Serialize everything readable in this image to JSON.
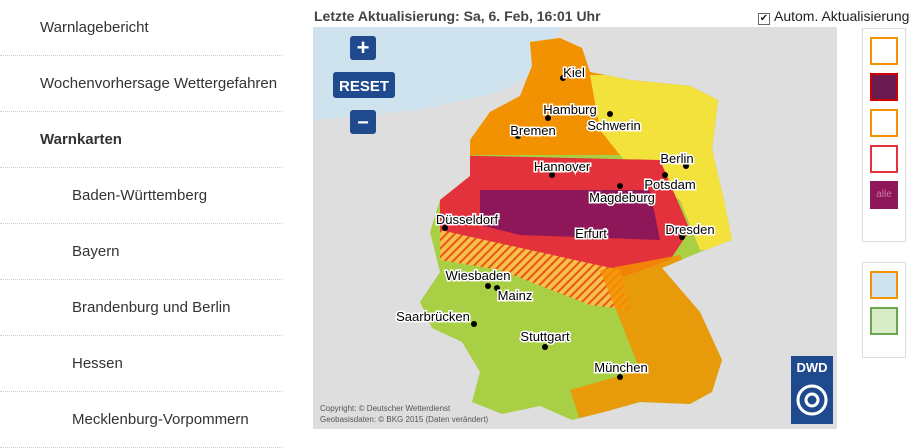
{
  "sidebar": {
    "items": [
      "Warnlagebericht",
      "Wochenvorhersage Wettergefahren",
      "Warnkarten"
    ],
    "subitems": [
      "Baden-Württemberg",
      "Bayern",
      "Brandenburg und Berlin",
      "Hessen",
      "Mecklenburg-Vorpommern"
    ]
  },
  "header": {
    "last_update": "Letzte Aktualisierung: Sa, 6. Feb, 16:01 Uhr",
    "auto_update": "Autom. Aktualisierung"
  },
  "map": {
    "zoom_in": "+",
    "reset": "RESET",
    "zoom_out": "−",
    "cities": [
      "Kiel",
      "Hamburg",
      "Schwerin",
      "Bremen",
      "Hannover",
      "Berlin",
      "Potsdam",
      "Magdeburg",
      "Düsseldorf",
      "Erfurt",
      "Dresden",
      "Wiesbaden",
      "Mainz",
      "Saarbrücken",
      "Stuttgart",
      "München"
    ],
    "copyright": "Copyright: © Deutscher Wetterdienst",
    "geodata": "Geobasisdaten: © BKG 2015 (Daten verändert)",
    "logo": "DWD"
  },
  "panel": {
    "all": "alle"
  }
}
